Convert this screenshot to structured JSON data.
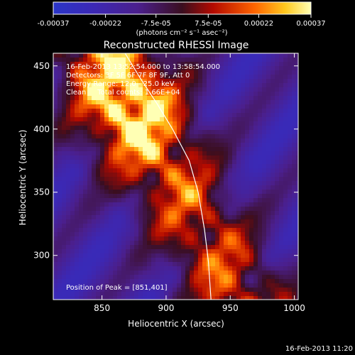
{
  "chart_data": {
    "type": "heatmap",
    "title": "Reconstructed RHESSI Image",
    "xlabel": "Heliocentric X (arcsec)",
    "ylabel": "Heliocentric Y (arcsec)",
    "xlim": [
      812,
      1003
    ],
    "ylim": [
      265,
      460
    ],
    "xticks": [
      850,
      900,
      950,
      1000
    ],
    "yticks": [
      300,
      350,
      400,
      450
    ],
    "colorbar": {
      "ticks": [
        -0.00037,
        -0.00022,
        -7.5e-05,
        7.5e-05,
        0.00022,
        0.00037
      ],
      "tick_labels": [
        "-0.00037",
        "-0.00022",
        "-7.5e-05",
        "7.5e-05",
        "0.00022",
        "0.00037"
      ],
      "units_label": "(photons cm⁻² s⁻¹ asec⁻²)",
      "range": [
        -0.00037,
        0.00037
      ]
    },
    "annotations": [
      "16-Feb-2013 13:52:54.000 to 13:58:54.000",
      "Detectors: 3F 5F 6F 7F 8F 9F, Att 0",
      "Energy Range: 12.0 - 25.0 keV",
      "Clean     Total counts: 1.66E+04"
    ],
    "peak_label": "Position of Peak = [851,401]",
    "peak": [
      851,
      401
    ],
    "limb_curve": [
      [
        868,
        460
      ],
      [
        880,
        440
      ],
      [
        893,
        420
      ],
      [
        905,
        400
      ],
      [
        918,
        375
      ],
      [
        925,
        350
      ],
      [
        930,
        320
      ],
      [
        933,
        295
      ],
      [
        935,
        265
      ]
    ],
    "grid": false
  },
  "footer": {
    "timestamp": "16-Feb-2013 11:20"
  }
}
